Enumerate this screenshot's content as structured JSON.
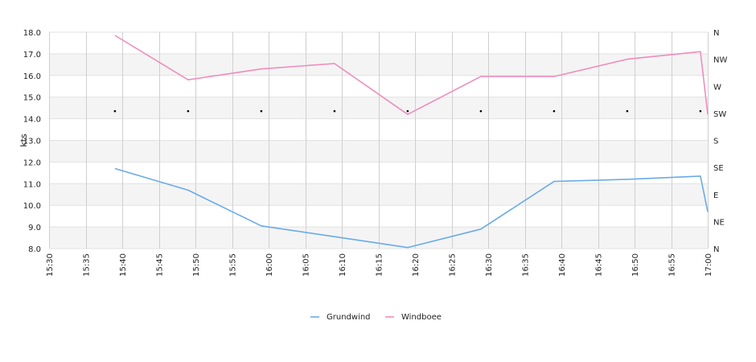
{
  "chart_data": {
    "type": "line",
    "ylabel": "kts",
    "ylim": [
      8.0,
      18.0
    ],
    "y_ticks": [
      "8.0",
      "9.0",
      "10.0",
      "11.0",
      "12.0",
      "13.0",
      "14.0",
      "15.0",
      "16.0",
      "17.0",
      "18.0"
    ],
    "xlim": [
      "15:30",
      "17:00"
    ],
    "x_ticks": [
      "15:30",
      "15:35",
      "15:40",
      "15:45",
      "15:50",
      "15:55",
      "16:00",
      "16:05",
      "16:10",
      "16:15",
      "16:20",
      "16:25",
      "16:30",
      "16:35",
      "16:40",
      "16:45",
      "16:50",
      "16:55",
      "17:00"
    ],
    "y2_ticks": [
      "N",
      "NE",
      "E",
      "SE",
      "S",
      "SW",
      "W",
      "NW",
      "N"
    ],
    "grid": true,
    "legend_position": "bottom-center",
    "series": [
      {
        "name": "Grundwind",
        "color": "#6aabea",
        "x": [
          "15:39",
          "15:49",
          "15:59",
          "16:09",
          "16:19",
          "16:29",
          "16:39",
          "16:49",
          "16:59",
          "17:00"
        ],
        "values": [
          11.7,
          10.7,
          9.05,
          8.55,
          8.05,
          8.9,
          11.1,
          11.2,
          11.35,
          9.7
        ]
      },
      {
        "name": "Windboee",
        "color": "#ef8cbc",
        "x": [
          "15:39",
          "15:49",
          "15:59",
          "16:09",
          "16:19",
          "16:29",
          "16:39",
          "16:49",
          "16:59",
          "17:00"
        ],
        "values": [
          17.85,
          15.8,
          16.3,
          16.55,
          14.2,
          15.95,
          15.95,
          16.75,
          17.1,
          14.2
        ]
      }
    ],
    "direction_markers": {
      "x": [
        "15:39",
        "15:49",
        "15:59",
        "16:09",
        "16:19",
        "16:29",
        "16:39",
        "16:49",
        "16:59"
      ],
      "values": [
        14.35,
        14.35,
        14.35,
        14.35,
        14.35,
        14.35,
        14.35,
        14.35,
        14.35
      ]
    }
  }
}
